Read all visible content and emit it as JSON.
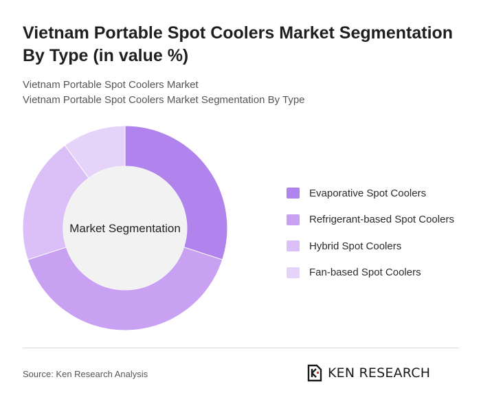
{
  "title": "Vietnam Portable Spot Coolers Market Segmentation By Type (in value %)",
  "subtitle_lines": [
    "Vietnam Portable Spot Coolers Market",
    "Vietnam Portable Spot Coolers Market Segmentation By Type"
  ],
  "source": "Source: Ken Research Analysis",
  "logo": {
    "name": "KEN RESEARCH",
    "icon": "ken-research-logo-icon"
  },
  "chart_data": {
    "type": "pie",
    "variant": "donut",
    "center_label": "Market Segmentation",
    "legend_position": "right",
    "categories": [
      "Evaporative Spot Coolers",
      "Refrigerant-based Spot Coolers",
      "Hybrid Spot Coolers",
      "Fan-based Spot Coolers"
    ],
    "values": [
      30,
      40,
      20,
      10
    ],
    "colors": [
      "#b183ec",
      "#c9a1f2",
      "#dac0f6",
      "#e6d3f9"
    ]
  }
}
